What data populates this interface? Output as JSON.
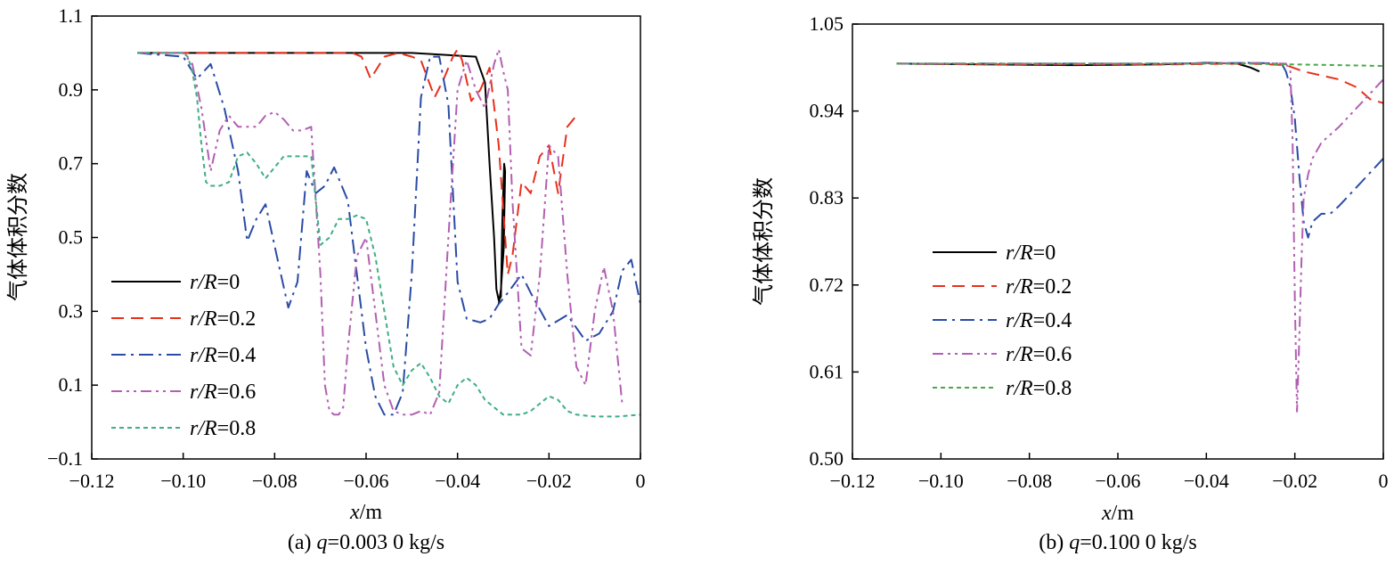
{
  "chart_data": [
    {
      "type": "line",
      "caption_prefix": "(a) ",
      "caption_var": "q",
      "caption_rest": "=0.003 0 kg/s",
      "xlabel_var": "x",
      "xlabel_unit": "/m",
      "ylabel": "气体体积分数",
      "xlim": [
        -0.12,
        0
      ],
      "ylim": [
        -0.1,
        1.1
      ],
      "xticks": [
        -0.12,
        -0.1,
        -0.08,
        -0.06,
        -0.04,
        -0.02,
        0
      ],
      "xtick_labels": [
        "−0.12",
        "−0.10",
        "−0.08",
        "−0.06",
        "−0.04",
        "−0.02",
        "0"
      ],
      "yticks": [
        -0.1,
        0.1,
        0.3,
        0.5,
        0.7,
        0.9,
        1.1
      ],
      "ytick_labels": [
        "−0.1",
        "0.1",
        "0.3",
        "0.5",
        "0.7",
        "0.9",
        "1.1"
      ],
      "legend_position": "bottom-left",
      "series": [
        {
          "name": "r/R=0",
          "var": "r/R",
          "value": "=0",
          "color": "#000000",
          "dash": "",
          "x": [
            -0.11,
            -0.09,
            -0.07,
            -0.05,
            -0.036,
            -0.034,
            -0.033,
            -0.032,
            -0.0315,
            -0.031,
            -0.0305,
            -0.0302,
            -0.0298,
            -0.0296,
            -0.0299,
            -0.0305,
            -0.031
          ],
          "y": [
            1.0,
            1.0,
            1.0,
            1.0,
            0.99,
            0.92,
            0.7,
            0.5,
            0.36,
            0.33,
            0.34,
            0.55,
            0.7,
            0.68,
            0.47,
            0.36,
            0.32
          ]
        },
        {
          "name": "r/R=0.2",
          "var": "r/R",
          "value": "=0.2",
          "color": "#e8301c",
          "dash": "14,8",
          "x": [
            -0.11,
            -0.08,
            -0.063,
            -0.061,
            -0.059,
            -0.056,
            -0.053,
            -0.05,
            -0.048,
            -0.045,
            -0.043,
            -0.041,
            -0.04,
            -0.039,
            -0.037,
            -0.035,
            -0.033,
            -0.031,
            -0.029,
            -0.028,
            -0.026,
            -0.024,
            -0.022,
            -0.02,
            -0.018,
            -0.016,
            -0.014
          ],
          "y": [
            1.0,
            1.0,
            1.0,
            0.99,
            0.93,
            0.99,
            1.0,
            0.99,
            0.98,
            0.88,
            0.93,
            0.99,
            1.01,
            0.98,
            0.87,
            0.9,
            0.96,
            0.75,
            0.4,
            0.45,
            0.65,
            0.62,
            0.72,
            0.75,
            0.62,
            0.8,
            0.83
          ]
        },
        {
          "name": "r/R=0.4",
          "var": "r/R",
          "value": "=0.4",
          "color": "#2a4ba6",
          "dash": "16,6,3,6",
          "x": [
            -0.11,
            -0.1,
            -0.097,
            -0.094,
            -0.091,
            -0.088,
            -0.086,
            -0.084,
            -0.082,
            -0.079,
            -0.077,
            -0.075,
            -0.073,
            -0.071,
            -0.069,
            -0.067,
            -0.064,
            -0.062,
            -0.06,
            -0.058,
            -0.056,
            -0.054,
            -0.052,
            -0.05,
            -0.048,
            -0.046,
            -0.044,
            -0.042,
            -0.04,
            -0.038,
            -0.035,
            -0.033,
            -0.031,
            -0.029,
            -0.026,
            -0.024,
            -0.02,
            -0.016,
            -0.012,
            -0.009,
            -0.006,
            -0.004,
            -0.002,
            0
          ],
          "y": [
            1.0,
            0.99,
            0.93,
            0.97,
            0.85,
            0.68,
            0.49,
            0.55,
            0.59,
            0.42,
            0.31,
            0.38,
            0.68,
            0.62,
            0.64,
            0.69,
            0.6,
            0.4,
            0.2,
            0.07,
            0.02,
            0.02,
            0.08,
            0.4,
            0.88,
            0.99,
            0.99,
            0.86,
            0.38,
            0.28,
            0.27,
            0.28,
            0.32,
            0.35,
            0.4,
            0.35,
            0.26,
            0.29,
            0.22,
            0.24,
            0.3,
            0.41,
            0.44,
            0.32
          ]
        },
        {
          "name": "r/R=0.6",
          "var": "r/R",
          "value": "=0.6",
          "color": "#b25fb2",
          "dash": "12,5,3,5,3,5",
          "x": [
            -0.11,
            -0.1,
            -0.098,
            -0.096,
            -0.094,
            -0.092,
            -0.09,
            -0.088,
            -0.086,
            -0.084,
            -0.082,
            -0.08,
            -0.078,
            -0.076,
            -0.074,
            -0.072,
            -0.07,
            -0.069,
            -0.068,
            -0.067,
            -0.066,
            -0.065,
            -0.064,
            -0.062,
            -0.06,
            -0.058,
            -0.056,
            -0.054,
            -0.052,
            -0.05,
            -0.048,
            -0.046,
            -0.044,
            -0.042,
            -0.04,
            -0.038,
            -0.036,
            -0.034,
            -0.032,
            -0.031,
            -0.03,
            -0.029,
            -0.028,
            -0.026,
            -0.024,
            -0.022,
            -0.02,
            -0.018,
            -0.016,
            -0.014,
            -0.012,
            -0.01,
            -0.008,
            -0.006,
            -0.004
          ],
          "y": [
            1.0,
            1.0,
            0.97,
            0.85,
            0.68,
            0.79,
            0.83,
            0.8,
            0.8,
            0.8,
            0.83,
            0.84,
            0.82,
            0.79,
            0.79,
            0.8,
            0.4,
            0.1,
            0.03,
            0.02,
            0.02,
            0.04,
            0.2,
            0.45,
            0.5,
            0.3,
            0.1,
            0.03,
            0.02,
            0.02,
            0.03,
            0.02,
            0.08,
            0.5,
            0.9,
            0.98,
            0.9,
            0.85,
            0.97,
            1.01,
            0.95,
            0.9,
            0.6,
            0.2,
            0.18,
            0.4,
            0.75,
            0.72,
            0.4,
            0.15,
            0.1,
            0.3,
            0.42,
            0.3,
            0.05
          ]
        },
        {
          "name": "r/R=0.8",
          "var": "r/R",
          "value": "=0.8",
          "color": "#3fae83",
          "dash": "5,4",
          "x": [
            -0.11,
            -0.1,
            -0.099,
            -0.098,
            -0.097,
            -0.096,
            -0.095,
            -0.094,
            -0.092,
            -0.09,
            -0.088,
            -0.086,
            -0.084,
            -0.082,
            -0.08,
            -0.078,
            -0.076,
            -0.074,
            -0.072,
            -0.07,
            -0.068,
            -0.066,
            -0.064,
            -0.062,
            -0.06,
            -0.058,
            -0.056,
            -0.054,
            -0.052,
            -0.05,
            -0.048,
            -0.046,
            -0.044,
            -0.042,
            -0.04,
            -0.038,
            -0.036,
            -0.034,
            -0.032,
            -0.03,
            -0.028,
            -0.026,
            -0.024,
            -0.022,
            -0.02,
            -0.018,
            -0.016,
            -0.014,
            -0.01,
            -0.005,
            0
          ],
          "y": [
            1.0,
            1.0,
            0.99,
            0.95,
            0.88,
            0.75,
            0.65,
            0.64,
            0.64,
            0.65,
            0.72,
            0.73,
            0.7,
            0.66,
            0.69,
            0.72,
            0.72,
            0.72,
            0.72,
            0.48,
            0.5,
            0.55,
            0.55,
            0.56,
            0.55,
            0.45,
            0.3,
            0.15,
            0.1,
            0.14,
            0.16,
            0.12,
            0.07,
            0.05,
            0.1,
            0.12,
            0.1,
            0.06,
            0.04,
            0.02,
            0.02,
            0.02,
            0.03,
            0.05,
            0.07,
            0.06,
            0.03,
            0.02,
            0.015,
            0.015,
            0.02
          ]
        }
      ]
    },
    {
      "type": "line",
      "caption_prefix": "(b) ",
      "caption_var": "q",
      "caption_rest": "=0.100 0 kg/s",
      "xlabel_var": "x",
      "xlabel_unit": "/m",
      "ylabel": "气体体积分数",
      "xlim": [
        -0.12,
        0
      ],
      "ylim": [
        0.5,
        1.05
      ],
      "xticks": [
        -0.12,
        -0.1,
        -0.08,
        -0.06,
        -0.04,
        -0.02,
        0
      ],
      "xtick_labels": [
        "−0.12",
        "−0.10",
        "−0.08",
        "−0.06",
        "−0.04",
        "−0.02",
        "0"
      ],
      "yticks": [
        0.5,
        0.61,
        0.72,
        0.83,
        0.94,
        1.05
      ],
      "ytick_labels": [
        "0.50",
        "0.61",
        "0.72",
        "0.83",
        "0.94",
        "1.05"
      ],
      "legend_position": "center-left",
      "series": [
        {
          "name": "r/R=0",
          "var": "r/R",
          "value": "=0",
          "color": "#000000",
          "dash": "",
          "x": [
            -0.11,
            -0.09,
            -0.07,
            -0.05,
            -0.04,
            -0.033,
            -0.03,
            -0.028
          ],
          "y": [
            1.0,
            0.999,
            0.998,
            0.999,
            1.001,
            1.0,
            0.995,
            0.99
          ]
        },
        {
          "name": "r/R=0.2",
          "var": "r/R",
          "value": "=0.2",
          "color": "#e8301c",
          "dash": "14,8",
          "x": [
            -0.11,
            -0.09,
            -0.07,
            -0.05,
            -0.03,
            -0.022,
            -0.018,
            -0.014,
            -0.01,
            -0.006,
            -0.003,
            0
          ],
          "y": [
            1.0,
            0.999,
            0.999,
            0.999,
            1.0,
            0.998,
            0.99,
            0.985,
            0.98,
            0.97,
            0.955,
            0.95
          ]
        },
        {
          "name": "r/R=0.4",
          "var": "r/R",
          "value": "=0.4",
          "color": "#2a4ba6",
          "dash": "16,6,3,6",
          "x": [
            -0.11,
            -0.09,
            -0.07,
            -0.05,
            -0.03,
            -0.023,
            -0.022,
            -0.021,
            -0.02,
            -0.019,
            -0.018,
            -0.017,
            -0.016,
            -0.014,
            -0.012,
            -0.01,
            -0.005,
            0
          ],
          "y": [
            1.0,
            1.0,
            1.0,
            1.0,
            1.001,
            1.0,
            0.99,
            0.97,
            0.93,
            0.86,
            0.8,
            0.78,
            0.8,
            0.81,
            0.81,
            0.82,
            0.85,
            0.88
          ]
        },
        {
          "name": "r/R=0.6",
          "var": "r/R",
          "value": "=0.6",
          "color": "#b25fb2",
          "dash": "12,5,3,5,3,5",
          "x": [
            -0.11,
            -0.09,
            -0.07,
            -0.05,
            -0.03,
            -0.022,
            -0.021,
            -0.0205,
            -0.02,
            -0.0195,
            -0.019,
            -0.0185,
            -0.018,
            -0.017,
            -0.016,
            -0.014,
            -0.01,
            -0.005,
            0
          ],
          "y": [
            1.0,
            1.0,
            1.0,
            1.0,
            1.001,
            1.0,
            0.99,
            0.9,
            0.7,
            0.56,
            0.65,
            0.75,
            0.83,
            0.86,
            0.88,
            0.9,
            0.92,
            0.95,
            0.98
          ]
        },
        {
          "name": "r/R=0.8",
          "var": "r/R",
          "value": "=0.8",
          "color": "#4aa84a",
          "dash": "5,4",
          "x": [
            -0.11,
            -0.09,
            -0.07,
            -0.05,
            -0.03,
            -0.02,
            -0.01,
            0
          ],
          "y": [
            1.0,
            1.0,
            1.0,
            1.0,
            1.0,
            0.999,
            0.998,
            0.997
          ]
        }
      ]
    }
  ]
}
